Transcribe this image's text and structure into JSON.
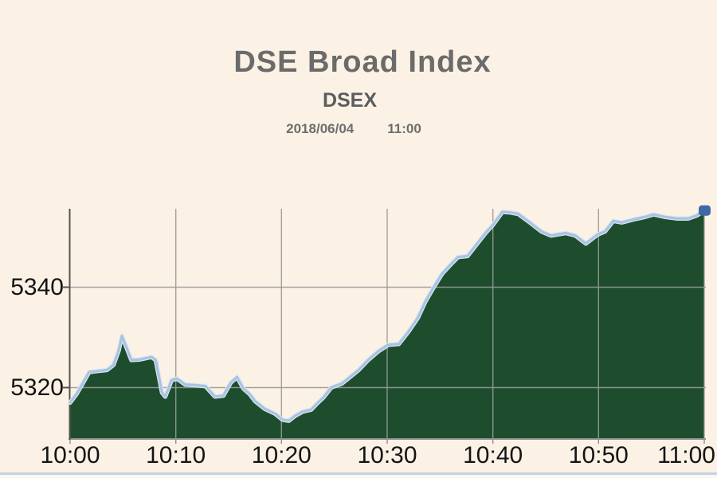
{
  "page": {
    "background_color": "#fcf1e5",
    "bottom_border_color": "#c3d2e4"
  },
  "header": {
    "title": "DSE Broad Index",
    "subtitle": "DSEX",
    "date": "2018/06/04",
    "time": "11:00"
  },
  "chart_data": {
    "type": "area",
    "title": "DSE Broad Index",
    "subtitle": "DSEX",
    "timestamp": "2018/06/04 11:00",
    "xlabel": "",
    "ylabel": "",
    "xlim_minutes": [
      0,
      60
    ],
    "ylim": [
      5310,
      5355.6
    ],
    "grid": true,
    "legend": "none",
    "x_ticks": [
      {
        "label": "10:00",
        "minute": 0
      },
      {
        "label": "10:10",
        "minute": 10
      },
      {
        "label": "10:20",
        "minute": 20
      },
      {
        "label": "10:30",
        "minute": 30
      },
      {
        "label": "10:40",
        "minute": 40
      },
      {
        "label": "10:50",
        "minute": 50
      },
      {
        "label": "11:00",
        "minute": 60
      }
    ],
    "y_ticks": [
      {
        "label": "5320",
        "value": 5320
      },
      {
        "label": "5340",
        "value": 5340
      }
    ],
    "series": [
      {
        "name": "DSEX",
        "points": [
          [
            0.0,
            5317.0
          ],
          [
            0.6,
            5318.7
          ],
          [
            1.1,
            5320.5
          ],
          [
            1.8,
            5323.1
          ],
          [
            2.6,
            5323.3
          ],
          [
            3.5,
            5323.5
          ],
          [
            4.1,
            5324.5
          ],
          [
            4.6,
            5327.4
          ],
          [
            4.9,
            5330.3
          ],
          [
            5.3,
            5328.2
          ],
          [
            5.8,
            5325.5
          ],
          [
            6.6,
            5325.6
          ],
          [
            7.7,
            5326.1
          ],
          [
            8.1,
            5325.5
          ],
          [
            8.7,
            5319.0
          ],
          [
            9.0,
            5318.2
          ],
          [
            9.6,
            5321.5
          ],
          [
            10.1,
            5321.8
          ],
          [
            10.9,
            5320.6
          ],
          [
            11.8,
            5320.5
          ],
          [
            12.8,
            5320.3
          ],
          [
            13.7,
            5318.2
          ],
          [
            14.5,
            5318.4
          ],
          [
            15.2,
            5321.0
          ],
          [
            15.8,
            5322.1
          ],
          [
            16.4,
            5319.8
          ],
          [
            17.0,
            5318.7
          ],
          [
            17.5,
            5317.3
          ],
          [
            18.4,
            5315.8
          ],
          [
            19.4,
            5314.8
          ],
          [
            20.1,
            5313.6
          ],
          [
            20.7,
            5313.4
          ],
          [
            21.3,
            5314.4
          ],
          [
            22.0,
            5315.2
          ],
          [
            22.8,
            5315.6
          ],
          [
            23.4,
            5316.9
          ],
          [
            24.0,
            5318.1
          ],
          [
            24.7,
            5320.0
          ],
          [
            25.3,
            5320.5
          ],
          [
            25.7,
            5320.8
          ],
          [
            26.3,
            5321.8
          ],
          [
            27.3,
            5323.5
          ],
          [
            28.2,
            5325.5
          ],
          [
            29.2,
            5327.3
          ],
          [
            30.1,
            5328.5
          ],
          [
            31.1,
            5328.7
          ],
          [
            32.0,
            5331.1
          ],
          [
            32.9,
            5333.9
          ],
          [
            33.6,
            5337.1
          ],
          [
            34.4,
            5340.0
          ],
          [
            35.2,
            5342.7
          ],
          [
            36.0,
            5344.5
          ],
          [
            36.7,
            5346.0
          ],
          [
            37.6,
            5346.2
          ],
          [
            38.6,
            5348.9
          ],
          [
            39.3,
            5350.8
          ],
          [
            40.0,
            5352.4
          ],
          [
            40.9,
            5355.0
          ],
          [
            41.6,
            5354.9
          ],
          [
            42.4,
            5354.6
          ],
          [
            43.5,
            5352.9
          ],
          [
            44.6,
            5351.1
          ],
          [
            45.5,
            5350.3
          ],
          [
            46.9,
            5350.8
          ],
          [
            47.8,
            5350.3
          ],
          [
            48.8,
            5348.7
          ],
          [
            49.9,
            5350.5
          ],
          [
            50.6,
            5351.1
          ],
          [
            51.4,
            5353.2
          ],
          [
            52.2,
            5352.9
          ],
          [
            53.3,
            5353.5
          ],
          [
            54.4,
            5354.0
          ],
          [
            55.2,
            5354.5
          ],
          [
            56.3,
            5354.0
          ],
          [
            57.4,
            5353.7
          ],
          [
            58.5,
            5353.7
          ],
          [
            59.3,
            5354.3
          ],
          [
            60.0,
            5355.2
          ]
        ]
      }
    ],
    "colors": {
      "area_fill": "#1e4d2e",
      "line": "#a9c4e0",
      "line_halo": "#dde8f3",
      "marker": "#3e69a6",
      "grid": "#999999",
      "axis": "#555555",
      "axis_bottom": "#8f8f8f",
      "tick_text": "#141414"
    }
  }
}
